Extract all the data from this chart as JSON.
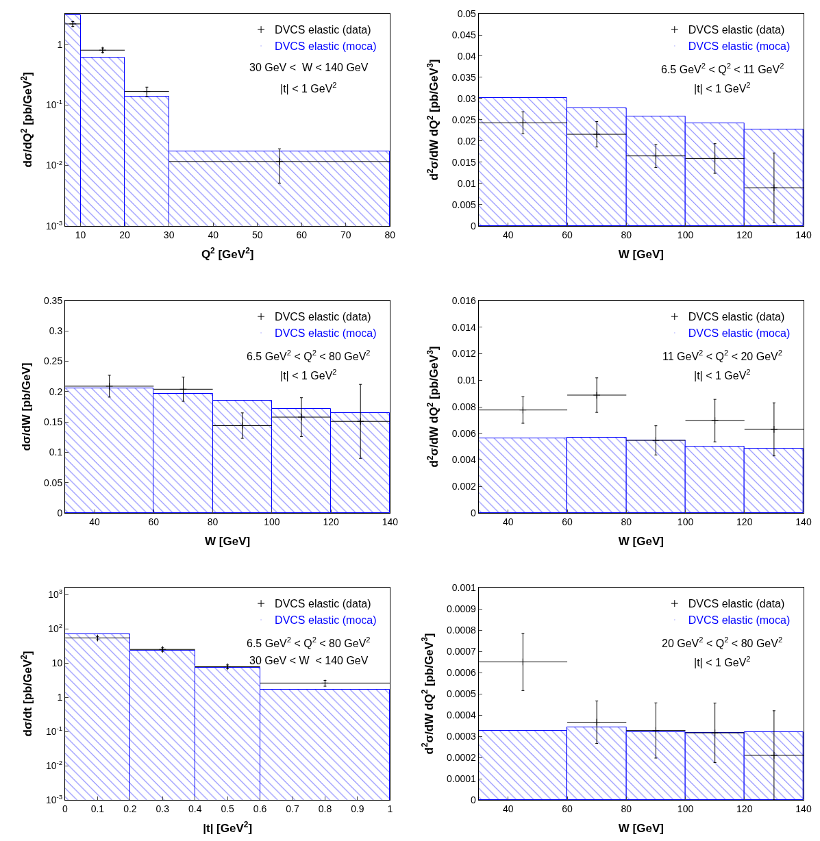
{
  "chart_data": [
    {
      "type": "histogram",
      "xlabel": "Q$^{2}$ [GeV$^{2}$]",
      "ylabel": "dσ/dQ$^{2}$ [pb/GeV$^{2}$]",
      "xlim": [
        6.5,
        80
      ],
      "ylim": [
        0.001,
        3.2
      ],
      "log": true,
      "legend": "top right",
      "xticks": [
        10,
        20,
        30,
        40,
        50,
        60,
        70,
        80
      ],
      "yticks": [
        {
          "value": 0.001,
          "label": "10$^{-3}$"
        },
        {
          "value": 0.01,
          "label": "10$^{-2}$"
        },
        {
          "value": 0.1,
          "label": "10$^{-1}$"
        },
        1
      ],
      "annotations": [
        "30 GeV <  W < 140 GeV",
        "|t| < 1 GeV$^{2}$"
      ],
      "series": [
        {
          "name": "DVCS elastic (moca)",
          "color": "#0000ff",
          "bins": [
            6.5,
            10,
            20,
            30,
            80
          ],
          "values": [
            3.0,
            0.6,
            0.137,
            0.017
          ]
        },
        {
          "type": "scatter",
          "name": "DVCS elastic (data)",
          "color": "#000000",
          "marker": "cross",
          "x": [
            8.25,
            15,
            25,
            55
          ],
          "values": [
            2.17,
            0.8,
            0.166,
            0.0116
          ],
          "errors": [
            0.2,
            0.07,
            0.03,
            [
              0.0051,
              0.0188
            ]
          ],
          "xerrors": [
            1.75,
            5,
            5,
            25
          ]
        }
      ]
    },
    {
      "type": "histogram",
      "xlabel": "W [GeV]",
      "ylabel": "d$^{2}$σ/dW dQ$^{2}$ [pb/GeV$^{3}$]",
      "xlim": [
        30,
        140
      ],
      "ylim": [
        0,
        0.05
      ],
      "legend": "top right",
      "xticks": [
        40,
        60,
        80,
        100,
        120,
        140
      ],
      "yticks": [
        0,
        0.005,
        0.01,
        0.015,
        0.02,
        0.025,
        0.03,
        0.035,
        0.04,
        0.045,
        0.05
      ],
      "annotations": [
        "6.5 GeV$^{2}$ < Q$^{2}$ < 11 GeV$^{2}$",
        "|t| < 1 GeV$^{2}$"
      ],
      "series": [
        {
          "name": "DVCS elastic (moca)",
          "color": "#0000ff",
          "bins": [
            30,
            60,
            80,
            100,
            120,
            140
          ],
          "values": [
            0.0302,
            0.0278,
            0.0258,
            0.0242,
            0.0227
          ]
        },
        {
          "type": "scatter",
          "name": "DVCS elastic (data)",
          "color": "#000000",
          "marker": "cross",
          "x": [
            45,
            70,
            90,
            110,
            130
          ],
          "values": [
            0.0243,
            0.0216,
            0.0165,
            0.0159,
            0.009
          ],
          "errors": [
            0.0026,
            0.003,
            0.0027,
            0.0035,
            0.0082
          ],
          "xerrors": [
            15,
            10,
            10,
            10,
            10
          ]
        }
      ]
    },
    {
      "type": "histogram",
      "xlabel": "W [GeV]",
      "ylabel": "dσ/dW [pb/GeV]",
      "xlim": [
        30,
        140
      ],
      "ylim": [
        0,
        0.35
      ],
      "legend": "top right",
      "xticks": [
        40,
        60,
        80,
        100,
        120,
        140
      ],
      "yticks": [
        0,
        0.05,
        0.1,
        0.15,
        0.2,
        0.25,
        0.3,
        0.35
      ],
      "annotations": [
        "6.5 GeV$^{2}$ < Q$^{2}$ < 80 GeV$^{2}$",
        "|t| < 1 GeV$^{2}$"
      ],
      "series": [
        {
          "name": "DVCS elastic (moca)",
          "color": "#0000ff",
          "bins": [
            30,
            60,
            80,
            100,
            120,
            140
          ],
          "values": [
            0.205,
            0.197,
            0.185,
            0.172,
            0.165
          ]
        },
        {
          "type": "scatter",
          "name": "DVCS elastic (data)",
          "color": "#000000",
          "marker": "cross",
          "x": [
            45,
            70,
            90,
            110,
            130
          ],
          "values": [
            0.209,
            0.204,
            0.144,
            0.158,
            0.151
          ],
          "errors": [
            0.018,
            0.02,
            0.021,
            0.032,
            0.061
          ],
          "xerrors": [
            15,
            10,
            10,
            10,
            10
          ]
        }
      ]
    },
    {
      "type": "histogram",
      "xlabel": "W [GeV]",
      "ylabel": "d$^{2}$σ/dW dQ$^{2}$ [pb/GeV$^{3}$]",
      "xlim": [
        30,
        140
      ],
      "ylim": [
        0,
        0.016
      ],
      "legend": "top right",
      "xticks": [
        40,
        60,
        80,
        100,
        120,
        140
      ],
      "yticks": [
        0,
        0.002,
        0.004,
        0.006,
        0.008,
        0.01,
        0.012,
        0.014,
        0.016
      ],
      "annotations": [
        "11 GeV$^{2}$ < Q$^{2}$ < 20 GeV$^{2}$",
        "|t| < 1 GeV$^{2}$"
      ],
      "series": [
        {
          "name": "DVCS elastic (moca)",
          "color": "#0000ff",
          "bins": [
            30,
            60,
            80,
            100,
            120,
            140
          ],
          "values": [
            0.00565,
            0.0057,
            0.00547,
            0.005,
            0.00486
          ]
        },
        {
          "type": "scatter",
          "name": "DVCS elastic (data)",
          "color": "#000000",
          "marker": "cross",
          "x": [
            45,
            70,
            90,
            110,
            130
          ],
          "values": [
            0.00776,
            0.00888,
            0.00547,
            0.00696,
            0.0063
          ],
          "errors": [
            0.001,
            0.0013,
            0.0011,
            0.0016,
            0.002
          ],
          "xerrors": [
            15,
            10,
            10,
            10,
            10
          ]
        }
      ]
    },
    {
      "type": "histogram",
      "xlabel": "|t| [GeV$^{2}$]",
      "ylabel": "dσ/dt [pb/GeV$^{2}$]",
      "xlim": [
        0,
        1
      ],
      "ylim": [
        0.001,
        1600
      ],
      "log": true,
      "legend": "top right",
      "xticks": [
        0,
        0.1,
        0.2,
        0.3,
        0.4,
        0.5,
        0.6,
        0.7,
        0.8,
        0.9,
        1
      ],
      "yticks": [
        {
          "value": 0.001,
          "label": "10$^{-3}$"
        },
        {
          "value": 0.01,
          "label": "10$^{-2}$"
        },
        {
          "value": 0.1,
          "label": "10$^{-1}$"
        },
        1,
        10,
        {
          "value": 100,
          "label": "10$^{2}$"
        },
        {
          "value": 1000,
          "label": "10$^{3}$"
        }
      ],
      "annotations": [
        "6.5 GeV$^{2}$ < Q$^{2}$ < 80 GeV$^{2}$",
        "30 GeV < W  < 140 GeV"
      ],
      "series": [
        {
          "name": "DVCS elastic (moca)",
          "color": "#0000ff",
          "bins": [
            0,
            0.2,
            0.4,
            0.6,
            1
          ],
          "values": [
            70,
            23,
            7.3,
            1.7
          ]
        },
        {
          "type": "scatter",
          "name": "DVCS elastic (data)",
          "color": "#000000",
          "marker": "cross",
          "x": [
            0.1,
            0.3,
            0.5,
            0.8
          ],
          "values": [
            54,
            25,
            7.8,
            2.6
          ],
          "errors": [
            6,
            3,
            1,
            0.5
          ],
          "xerrors": [
            0.1,
            0.1,
            0.1,
            0.2
          ]
        }
      ]
    },
    {
      "type": "histogram",
      "xlabel": "W [GeV]",
      "ylabel": "d$^{2}$σ/dW dQ$^{2}$ [pb/GeV$^{3}$]",
      "xlim": [
        30,
        140
      ],
      "ylim": [
        0,
        0.001
      ],
      "legend": "top right",
      "xticks": [
        40,
        60,
        80,
        100,
        120,
        140
      ],
      "yticks": [
        0,
        0.0001,
        0.0002,
        0.0003,
        0.0004,
        0.0005,
        0.0006,
        0.0007,
        0.0008,
        0.0009,
        0.001
      ],
      "annotations": [
        "20 GeV$^{2}$ < Q$^{2}$ < 80 GeV$^{2}$",
        "|t| < 1 GeV$^{2}$"
      ],
      "series": [
        {
          "name": "DVCS elastic (moca)",
          "color": "#0000ff",
          "bins": [
            30,
            60,
            80,
            100,
            120,
            140
          ],
          "values": [
            0.000327,
            0.000342,
            0.000319,
            0.000316,
            0.000319
          ]
        },
        {
          "type": "scatter",
          "name": "DVCS elastic (data)",
          "color": "#000000",
          "marker": "cross",
          "x": [
            45,
            70,
            90,
            110,
            130
          ],
          "values": [
            0.00065,
            0.000366,
            0.000327,
            0.000316,
            0.00021
          ],
          "errors": [
            0.000135,
            0.0001,
            0.00013,
            0.00014,
            0.00021
          ],
          "xerrors": [
            15,
            10,
            10,
            10,
            10
          ]
        }
      ]
    }
  ]
}
